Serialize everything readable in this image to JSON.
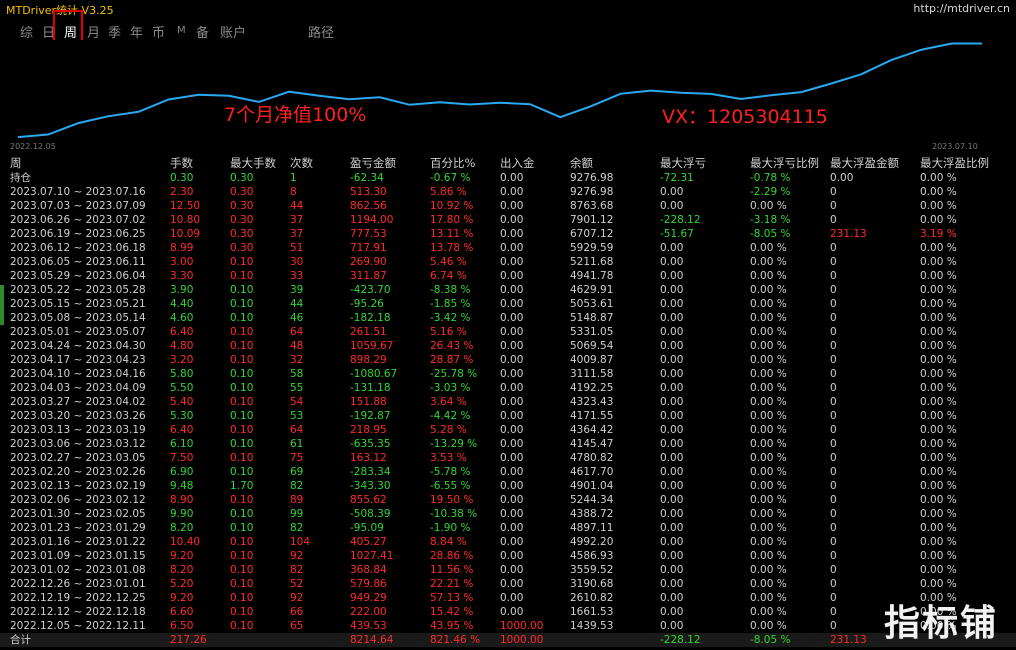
{
  "app": {
    "title": "MTDriver统计 V3.25",
    "url": "http://mtdriver.cn"
  },
  "tabs": [
    "综",
    "日",
    "周",
    "月",
    "季",
    "年",
    "币",
    "M",
    "备",
    "账户",
    "路径"
  ],
  "selected_tab": "周",
  "chart": {
    "start_date": "2022.12.05",
    "end_date": "2023.07.10",
    "annotation_left": "7个月净值100%",
    "annotation_right": "VX：1205304115",
    "line_color": "#2aa8f0"
  },
  "chart_data": {
    "type": "line",
    "series": [
      {
        "values": [
          1439.53,
          1661.53,
          2610.82,
          3190.68,
          3559.52,
          4586.93,
          4992.2,
          4897.11,
          4388.72,
          5244.34,
          4901.04,
          4617.7,
          4780.82,
          4145.47,
          4364.42,
          4171.55,
          4323.43,
          4192.25,
          3111.58,
          4009.87,
          5069.54,
          5331.05,
          5148.87,
          5053.61,
          4629.91,
          4941.78,
          5211.68,
          5929.59,
          6707.12,
          7901.12,
          8763.68,
          9276.98,
          9276.98
        ]
      }
    ],
    "x_start": "2022.12.05",
    "x_end": "2023.07.10"
  },
  "table": {
    "headers": [
      "周",
      "手数",
      "最大手数",
      "次数",
      "盈亏金额",
      "百分比%",
      "出入金",
      "余额",
      "最大浮亏",
      "最大浮亏比例",
      "最大浮盈金额",
      "最大浮盈比例"
    ],
    "rows": [
      {
        "c": [
          "持仓",
          "0.30",
          "0.30",
          "1",
          "-62.34",
          "-0.67 %",
          "0.00",
          "9276.98",
          "-72.31",
          "-0.78 %",
          "0.00",
          "0.00 %"
        ],
        "k": "w,g,g,g,g,g,w,w,g,g,w,w"
      },
      {
        "c": [
          "2023.07.10 ~ 2023.07.16",
          "2.30",
          "0.30",
          "8",
          "513.30",
          "5.86 %",
          "0.00",
          "9276.98",
          "0.00",
          "-2.29 %",
          "0",
          "0.00 %"
        ],
        "k": "w,r,r,r,r,r,w,w,w,g,w,w"
      },
      {
        "c": [
          "2023.07.03 ~ 2023.07.09",
          "12.50",
          "0.30",
          "44",
          "862.56",
          "10.92 %",
          "0.00",
          "8763.68",
          "0.00",
          "0.00 %",
          "0",
          "0.00 %"
        ],
        "k": "w,r,r,r,r,r,w,w,w,w,w,w"
      },
      {
        "c": [
          "2023.06.26 ~ 2023.07.02",
          "10.80",
          "0.30",
          "37",
          "1194.00",
          "17.80 %",
          "0.00",
          "7901.12",
          "-228.12",
          "-3.18 %",
          "0",
          "0.00 %"
        ],
        "k": "w,r,r,r,r,r,w,w,g,g,w,w"
      },
      {
        "c": [
          "2023.06.19 ~ 2023.06.25",
          "10.09",
          "0.30",
          "37",
          "777.53",
          "13.11 %",
          "0.00",
          "6707.12",
          "-51.67",
          "-8.05 %",
          "231.13",
          "3.19 %"
        ],
        "k": "w,r,r,r,r,r,w,w,g,g,r,r"
      },
      {
        "c": [
          "2023.06.12 ~ 2023.06.18",
          "8.99",
          "0.30",
          "51",
          "717.91",
          "13.78 %",
          "0.00",
          "5929.59",
          "0.00",
          "0.00 %",
          "0",
          "0.00 %"
        ],
        "k": "w,r,r,r,r,r,w,w,w,w,w,w"
      },
      {
        "c": [
          "2023.06.05 ~ 2023.06.11",
          "3.00",
          "0.10",
          "30",
          "269.90",
          "5.46 %",
          "0.00",
          "5211.68",
          "0.00",
          "0.00 %",
          "0",
          "0.00 %"
        ],
        "k": "w,r,r,r,r,r,w,w,w,w,w,w"
      },
      {
        "c": [
          "2023.05.29 ~ 2023.06.04",
          "3.30",
          "0.10",
          "33",
          "311.87",
          "6.74 %",
          "0.00",
          "4941.78",
          "0.00",
          "0.00 %",
          "0",
          "0.00 %"
        ],
        "k": "w,r,r,r,r,r,w,w,w,w,w,w"
      },
      {
        "c": [
          "2023.05.22 ~ 2023.05.28",
          "3.90",
          "0.10",
          "39",
          "-423.70",
          "-8.38 %",
          "0.00",
          "4629.91",
          "0.00",
          "0.00 %",
          "0",
          "0.00 %"
        ],
        "k": "w,g,g,g,g,g,w,w,w,w,w,w"
      },
      {
        "c": [
          "2023.05.15 ~ 2023.05.21",
          "4.40",
          "0.10",
          "44",
          "-95.26",
          "-1.85 %",
          "0.00",
          "5053.61",
          "0.00",
          "0.00 %",
          "0",
          "0.00 %"
        ],
        "k": "w,g,g,g,g,g,w,w,w,w,w,w"
      },
      {
        "c": [
          "2023.05.08 ~ 2023.05.14",
          "4.60",
          "0.10",
          "46",
          "-182.18",
          "-3.42 %",
          "0.00",
          "5148.87",
          "0.00",
          "0.00 %",
          "0",
          "0.00 %"
        ],
        "k": "w,g,g,g,g,g,w,w,w,w,w,w"
      },
      {
        "c": [
          "2023.05.01 ~ 2023.05.07",
          "6.40",
          "0.10",
          "64",
          "261.51",
          "5.16 %",
          "0.00",
          "5331.05",
          "0.00",
          "0.00 %",
          "0",
          "0.00 %"
        ],
        "k": "w,r,r,r,r,r,w,w,w,w,w,w"
      },
      {
        "c": [
          "2023.04.24 ~ 2023.04.30",
          "4.80",
          "0.10",
          "48",
          "1059.67",
          "26.43 %",
          "0.00",
          "5069.54",
          "0.00",
          "0.00 %",
          "0",
          "0.00 %"
        ],
        "k": "w,r,r,r,r,r,w,w,w,w,w,w"
      },
      {
        "c": [
          "2023.04.17 ~ 2023.04.23",
          "3.20",
          "0.10",
          "32",
          "898.29",
          "28.87 %",
          "0.00",
          "4009.87",
          "0.00",
          "0.00 %",
          "0",
          "0.00 %"
        ],
        "k": "w,r,r,r,r,r,w,w,w,w,w,w"
      },
      {
        "c": [
          "2023.04.10 ~ 2023.04.16",
          "5.80",
          "0.10",
          "58",
          "-1080.67",
          "-25.78 %",
          "0.00",
          "3111.58",
          "0.00",
          "0.00 %",
          "0",
          "0.00 %"
        ],
        "k": "w,g,g,g,g,g,w,w,w,w,w,w"
      },
      {
        "c": [
          "2023.04.03 ~ 2023.04.09",
          "5.50",
          "0.10",
          "55",
          "-131.18",
          "-3.03 %",
          "0.00",
          "4192.25",
          "0.00",
          "0.00 %",
          "0",
          "0.00 %"
        ],
        "k": "w,g,g,g,g,g,w,w,w,w,w,w"
      },
      {
        "c": [
          "2023.03.27 ~ 2023.04.02",
          "5.40",
          "0.10",
          "54",
          "151.88",
          "3.64 %",
          "0.00",
          "4323.43",
          "0.00",
          "0.00 %",
          "0",
          "0.00 %"
        ],
        "k": "w,r,r,r,r,r,w,w,w,w,w,w"
      },
      {
        "c": [
          "2023.03.20 ~ 2023.03.26",
          "5.30",
          "0.10",
          "53",
          "-192.87",
          "-4.42 %",
          "0.00",
          "4171.55",
          "0.00",
          "0.00 %",
          "0",
          "0.00 %"
        ],
        "k": "w,g,g,g,g,g,w,w,w,w,w,w"
      },
      {
        "c": [
          "2023.03.13 ~ 2023.03.19",
          "6.40",
          "0.10",
          "64",
          "218.95",
          "5.28 %",
          "0.00",
          "4364.42",
          "0.00",
          "0.00 %",
          "0",
          "0.00 %"
        ],
        "k": "w,r,r,r,r,r,w,w,w,w,w,w"
      },
      {
        "c": [
          "2023.03.06 ~ 2023.03.12",
          "6.10",
          "0.10",
          "61",
          "-635.35",
          "-13.29 %",
          "0.00",
          "4145.47",
          "0.00",
          "0.00 %",
          "0",
          "0.00 %"
        ],
        "k": "w,g,g,g,g,g,w,w,w,w,w,w"
      },
      {
        "c": [
          "2023.02.27 ~ 2023.03.05",
          "7.50",
          "0.10",
          "75",
          "163.12",
          "3.53 %",
          "0.00",
          "4780.82",
          "0.00",
          "0.00 %",
          "0",
          "0.00 %"
        ],
        "k": "w,r,r,r,r,r,w,w,w,w,w,w"
      },
      {
        "c": [
          "2023.02.20 ~ 2023.02.26",
          "6.90",
          "0.10",
          "69",
          "-283.34",
          "-5.78 %",
          "0.00",
          "4617.70",
          "0.00",
          "0.00 %",
          "0",
          "0.00 %"
        ],
        "k": "w,g,g,g,g,g,w,w,w,w,w,w"
      },
      {
        "c": [
          "2023.02.13 ~ 2023.02.19",
          "9.48",
          "1.70",
          "82",
          "-343.30",
          "-6.55 %",
          "0.00",
          "4901.04",
          "0.00",
          "0.00 %",
          "0",
          "0.00 %"
        ],
        "k": "w,g,g,g,g,g,w,w,w,w,w,w"
      },
      {
        "c": [
          "2023.02.06 ~ 2023.02.12",
          "8.90",
          "0.10",
          "89",
          "855.62",
          "19.50 %",
          "0.00",
          "5244.34",
          "0.00",
          "0.00 %",
          "0",
          "0.00 %"
        ],
        "k": "w,r,r,r,r,r,w,w,w,w,w,w"
      },
      {
        "c": [
          "2023.01.30 ~ 2023.02.05",
          "9.90",
          "0.10",
          "99",
          "-508.39",
          "-10.38 %",
          "0.00",
          "4388.72",
          "0.00",
          "0.00 %",
          "0",
          "0.00 %"
        ],
        "k": "w,g,g,g,g,g,w,w,w,w,w,w"
      },
      {
        "c": [
          "2023.01.23 ~ 2023.01.29",
          "8.20",
          "0.10",
          "82",
          "-95.09",
          "-1.90 %",
          "0.00",
          "4897.11",
          "0.00",
          "0.00 %",
          "0",
          "0.00 %"
        ],
        "k": "w,g,g,g,g,g,w,w,w,w,w,w"
      },
      {
        "c": [
          "2023.01.16 ~ 2023.01.22",
          "10.40",
          "0.10",
          "104",
          "405.27",
          "8.84 %",
          "0.00",
          "4992.20",
          "0.00",
          "0.00 %",
          "0",
          "0.00 %"
        ],
        "k": "w,r,r,r,r,r,w,w,w,w,w,w"
      },
      {
        "c": [
          "2023.01.09 ~ 2023.01.15",
          "9.20",
          "0.10",
          "92",
          "1027.41",
          "28.86 %",
          "0.00",
          "4586.93",
          "0.00",
          "0.00 %",
          "0",
          "0.00 %"
        ],
        "k": "w,r,r,r,r,r,w,w,w,w,w,w"
      },
      {
        "c": [
          "2023.01.02 ~ 2023.01.08",
          "8.20",
          "0.10",
          "82",
          "368.84",
          "11.56 %",
          "0.00",
          "3559.52",
          "0.00",
          "0.00 %",
          "0",
          "0.00 %"
        ],
        "k": "w,r,r,r,r,r,w,w,w,w,w,w"
      },
      {
        "c": [
          "2022.12.26 ~ 2023.01.01",
          "5.20",
          "0.10",
          "52",
          "579.86",
          "22.21 %",
          "0.00",
          "3190.68",
          "0.00",
          "0.00 %",
          "0",
          "0.00 %"
        ],
        "k": "w,r,r,r,r,r,w,w,w,w,w,w"
      },
      {
        "c": [
          "2022.12.19 ~ 2022.12.25",
          "9.20",
          "0.10",
          "92",
          "949.29",
          "57.13 %",
          "0.00",
          "2610.82",
          "0.00",
          "0.00 %",
          "0",
          "0.00 %"
        ],
        "k": "w,r,r,r,r,r,w,w,w,w,w,w"
      },
      {
        "c": [
          "2022.12.12 ~ 2022.12.18",
          "6.60",
          "0.10",
          "66",
          "222.00",
          "15.42 %",
          "0.00",
          "1661.53",
          "0.00",
          "0.00 %",
          "0",
          "0.00 %"
        ],
        "k": "w,r,r,r,r,r,w,w,w,w,w,w"
      },
      {
        "c": [
          "2022.12.05 ~ 2022.12.11",
          "6.50",
          "0.10",
          "65",
          "439.53",
          "43.95 %",
          "1000.00",
          "1439.53",
          "0.00",
          "0.00 %",
          "0",
          "0.00 %"
        ],
        "k": "w,r,r,r,r,r,r,w,w,w,w,w"
      }
    ],
    "total": {
      "c": [
        "合计",
        "217.26",
        "",
        "",
        "8214.64",
        "821.46 %",
        "1000.00",
        "",
        "-228.12",
        "-8.05 %",
        "231.13",
        ""
      ],
      "k": "w,r,w,w,r,r,r,w,g,g,r,r"
    }
  },
  "watermark": "指标铺"
}
